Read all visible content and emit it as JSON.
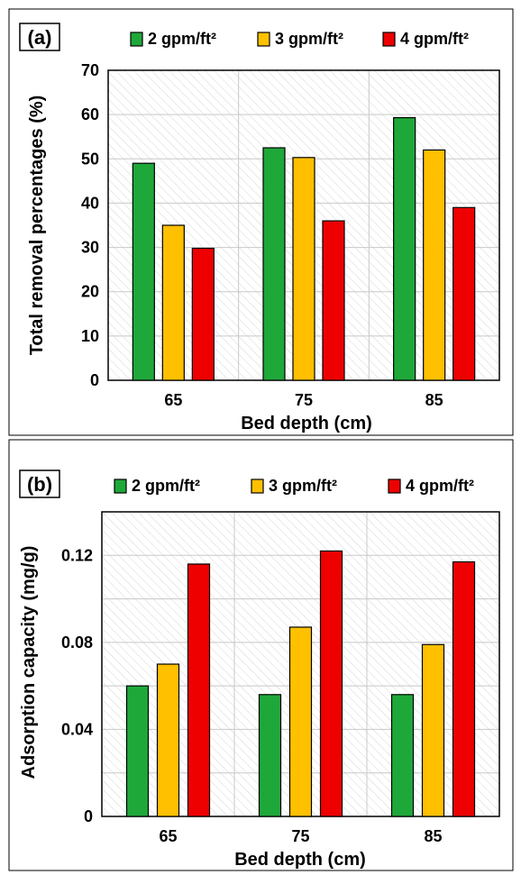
{
  "colors": {
    "s1": "#1fa83a",
    "s2": "#ffc000",
    "s3": "#ee0000",
    "grid": "#c8c8c8",
    "hatch": "#dcdcdc",
    "border": "#000000"
  },
  "chart_data": [
    {
      "panel_label": "(a)",
      "type": "bar",
      "categories": [
        "65",
        "75",
        "85"
      ],
      "series": [
        {
          "name": "2 gpm/ft²",
          "values": [
            49,
            52.5,
            59.3
          ]
        },
        {
          "name": "3 gpm/ft²",
          "values": [
            35,
            50.3,
            52
          ]
        },
        {
          "name": "4 gpm/ft²",
          "values": [
            29.8,
            36,
            39
          ]
        }
      ],
      "xlabel": "Bed depth (cm)",
      "ylabel": "Total removal percentages (%)",
      "ylim": [
        0,
        70
      ],
      "yticks": [
        "0",
        "10",
        "20",
        "30",
        "40",
        "50",
        "60",
        "70"
      ],
      "grid": true,
      "legend_position": "top"
    },
    {
      "panel_label": "(b)",
      "type": "bar",
      "categories": [
        "65",
        "75",
        "85"
      ],
      "series": [
        {
          "name": "2 gpm/ft²",
          "values": [
            0.06,
            0.056,
            0.056
          ]
        },
        {
          "name": "3 gpm/ft²",
          "values": [
            0.07,
            0.087,
            0.079
          ]
        },
        {
          "name": "4 gpm/ft²",
          "values": [
            0.116,
            0.122,
            0.117
          ]
        }
      ],
      "xlabel": "Bed depth (cm)",
      "ylabel": "Adsorption capacity (mg/g)",
      "ylim": [
        0,
        0.14
      ],
      "yticks": [
        "0",
        "0.04",
        "0.08",
        "0.12"
      ],
      "grid": true,
      "legend_position": "top"
    }
  ]
}
